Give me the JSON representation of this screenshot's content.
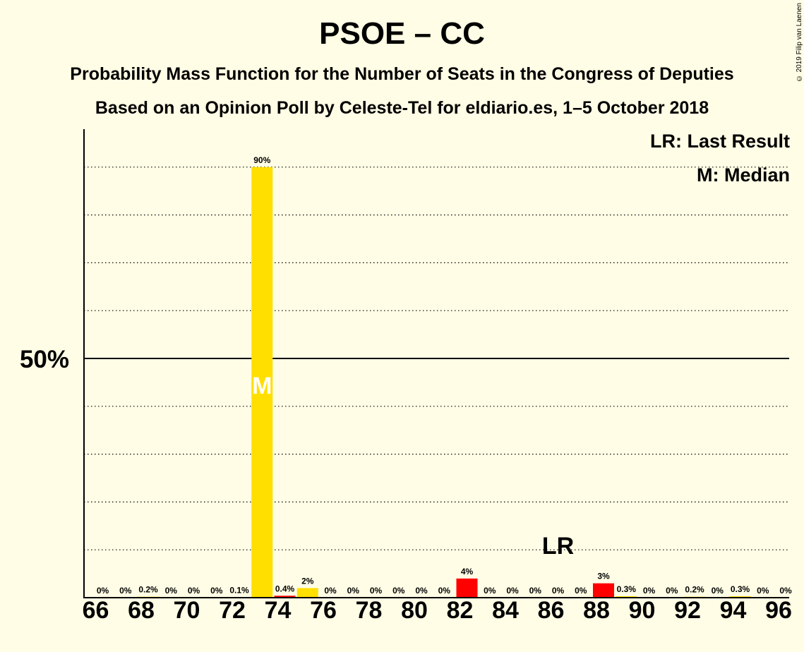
{
  "header": {
    "title": "PSOE – CC",
    "subtitle1": "Probability Mass Function for the Number of Seats in the Congress of Deputies",
    "subtitle2": "Based on an Opinion Poll by Celeste-Tel for eldiario.es, 1–5 October 2018",
    "copyright": "© 2019 Filip van Laenen"
  },
  "legend": {
    "lr": "LR: Last Result",
    "m": "M: Median"
  },
  "colors": {
    "background": "#FFFDE5",
    "psoe": "#FFDF00",
    "cc": "#FF0000",
    "axis": "#000000"
  },
  "chart_data": {
    "type": "bar",
    "title": "PSOE – CC",
    "xlabel": "",
    "ylabel": "",
    "ylim": [
      0,
      100
    ],
    "y_ticks_labeled": [
      {
        "value": 50,
        "label": "50%"
      }
    ],
    "gridlines": [
      10,
      20,
      30,
      40,
      60,
      70,
      80,
      90
    ],
    "x_tick_labels": [
      "66",
      "68",
      "70",
      "72",
      "74",
      "76",
      "78",
      "80",
      "82",
      "84",
      "86",
      "88",
      "90",
      "92",
      "94",
      "96"
    ],
    "categories": [
      66,
      67,
      68,
      69,
      70,
      71,
      72,
      73,
      74,
      75,
      76,
      77,
      78,
      79,
      80,
      81,
      82,
      83,
      84,
      85,
      86,
      87,
      88,
      89,
      90,
      91,
      92,
      93,
      94,
      95,
      96
    ],
    "values": [
      0,
      0,
      0.2,
      0,
      0,
      0,
      0.1,
      90,
      0.4,
      2,
      0,
      0,
      0,
      0,
      0,
      0,
      4,
      0,
      0,
      0,
      0,
      0,
      3,
      0.3,
      0,
      0,
      0.2,
      0,
      0.3,
      0,
      0
    ],
    "bar_labels": [
      "0%",
      "0%",
      "0.2%",
      "0%",
      "0%",
      "0%",
      "0.1%",
      "90%",
      "0.4%",
      "2%",
      "0%",
      "0%",
      "0%",
      "0%",
      "0%",
      "0%",
      "4%",
      "0%",
      "0%",
      "0%",
      "0%",
      "0%",
      "3%",
      "0.3%",
      "0%",
      "0%",
      "0.2%",
      "0%",
      "0.3%",
      "0%",
      "0%"
    ],
    "bar_colors": [
      "psoe",
      "psoe",
      "psoe",
      "psoe",
      "psoe",
      "psoe",
      "psoe",
      "psoe",
      "cc",
      "psoe",
      "psoe",
      "psoe",
      "psoe",
      "psoe",
      "psoe",
      "psoe",
      "cc",
      "psoe",
      "psoe",
      "psoe",
      "psoe",
      "psoe",
      "cc",
      "psoe",
      "psoe",
      "psoe",
      "psoe",
      "psoe",
      "psoe",
      "psoe",
      "psoe"
    ],
    "median": {
      "seat": 73,
      "label": "M"
    },
    "last_result": {
      "seat": 86,
      "label": "LR"
    },
    "grid": true,
    "legend_placement": "top-right"
  }
}
